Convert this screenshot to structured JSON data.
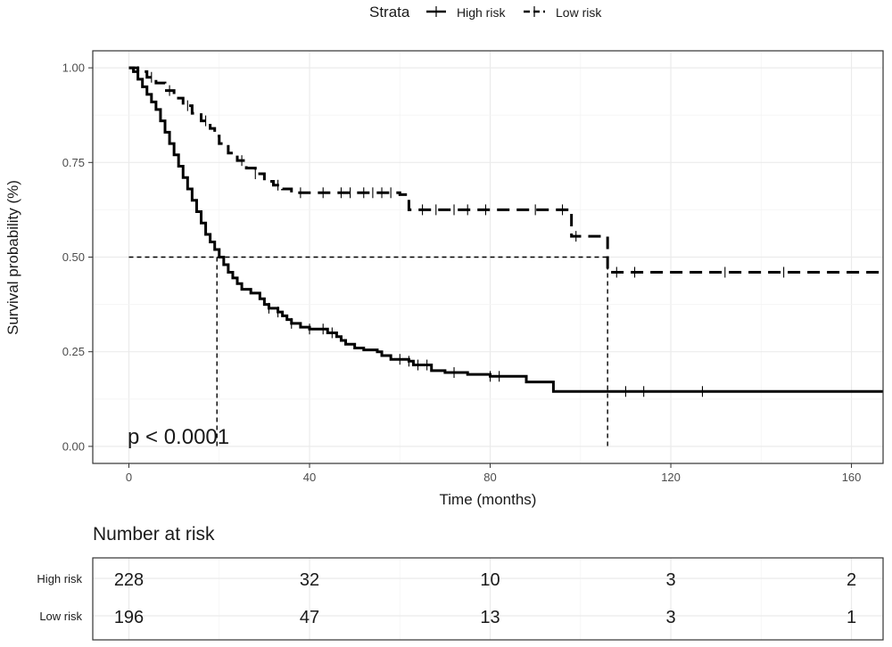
{
  "chart_data": [
    {
      "type": "line",
      "subtype": "kaplan-meier",
      "title": "",
      "xlabel": "Time (months)",
      "ylabel": "Survival probability (%)",
      "xlim": [
        -8,
        167
      ],
      "ylim": [
        -0.045,
        1.045
      ],
      "x_ticks": [
        0,
        40,
        80,
        120,
        160
      ],
      "x_tick_labels": [
        "0",
        "40",
        "80",
        "120",
        "160"
      ],
      "y_ticks": [
        0,
        0.25,
        0.5,
        0.75,
        1.0
      ],
      "y_tick_labels": [
        "0.00",
        "0.25",
        "0.50",
        "0.75",
        "1.00"
      ],
      "grid": true,
      "legend": {
        "title": "Strata",
        "position": "top",
        "entries": [
          "High risk",
          "Low risk"
        ]
      },
      "annotation": "p < 0.0001",
      "median_line": {
        "y": 0.5,
        "x_high": 19.5,
        "x_low": 106
      },
      "series": [
        {
          "name": "High risk",
          "line_style": "solid",
          "color": "#000000",
          "x": [
            0,
            1,
            2,
            3,
            4,
            5,
            6,
            7,
            8,
            9,
            10,
            11,
            12,
            13,
            14,
            15,
            16,
            17,
            18,
            19,
            20,
            21,
            22,
            23,
            24,
            25,
            27,
            29,
            30,
            31,
            33,
            34,
            35,
            36,
            38,
            40,
            44,
            46,
            47,
            48,
            50,
            52,
            55,
            56,
            58,
            62,
            63,
            67,
            70,
            75,
            80,
            88,
            94,
            167
          ],
          "y": [
            1.0,
            0.99,
            0.97,
            0.95,
            0.93,
            0.91,
            0.89,
            0.86,
            0.83,
            0.8,
            0.77,
            0.74,
            0.71,
            0.68,
            0.65,
            0.62,
            0.59,
            0.56,
            0.54,
            0.52,
            0.5,
            0.48,
            0.46,
            0.445,
            0.43,
            0.415,
            0.405,
            0.39,
            0.375,
            0.365,
            0.355,
            0.345,
            0.335,
            0.325,
            0.315,
            0.31,
            0.3,
            0.29,
            0.28,
            0.27,
            0.26,
            0.255,
            0.25,
            0.24,
            0.23,
            0.225,
            0.215,
            0.2,
            0.195,
            0.19,
            0.185,
            0.17,
            0.145,
            0.145
          ],
          "censor_x": [
            31,
            33,
            36,
            40,
            43,
            45,
            60,
            62,
            64,
            66,
            72,
            80,
            82,
            110,
            114,
            127
          ]
        },
        {
          "name": "Low risk",
          "line_style": "dashed",
          "color": "#000000",
          "x": [
            0,
            2,
            4,
            6,
            8,
            10,
            12,
            14,
            16,
            18,
            19,
            20,
            22,
            24,
            26,
            28,
            30,
            32,
            34,
            36,
            60,
            62,
            98,
            106,
            167
          ],
          "y": [
            1.0,
            0.99,
            0.975,
            0.96,
            0.94,
            0.92,
            0.9,
            0.88,
            0.86,
            0.84,
            0.82,
            0.8,
            0.775,
            0.755,
            0.735,
            0.72,
            0.7,
            0.69,
            0.68,
            0.67,
            0.665,
            0.625,
            0.555,
            0.46,
            0.46
          ],
          "censor_x": [
            2,
            5,
            9,
            13,
            17,
            25,
            28,
            33,
            38,
            43,
            47,
            49,
            52,
            54,
            56,
            58,
            65,
            68,
            72,
            75,
            79,
            90,
            96,
            99,
            108,
            112,
            132,
            145
          ]
        }
      ]
    },
    {
      "type": "table",
      "title": "Number at risk",
      "x_ticks": [
        0,
        40,
        80,
        120,
        160
      ],
      "rows": [
        {
          "label": "High risk",
          "values": [
            "228",
            "32",
            "10",
            "3",
            "2"
          ]
        },
        {
          "label": "Low risk",
          "values": [
            "196",
            "47",
            "13",
            "3",
            "1"
          ]
        }
      ]
    }
  ]
}
